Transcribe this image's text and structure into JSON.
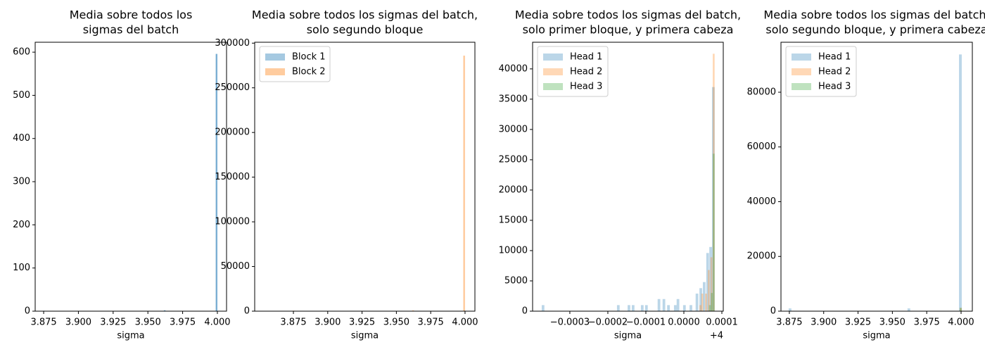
{
  "chart_data": [
    {
      "type": "histogram",
      "title": [
        "Media sobre todos los",
        "sigmas del batch"
      ],
      "x_label": "sigma",
      "xlim": [
        3.8689,
        4.0066
      ],
      "ylim": [
        0,
        623
      ],
      "xticks": [
        3.875,
        {
          "value": 3.9,
          "label": "3.900"
        },
        3.925,
        {
          "value": 3.95,
          "label": "3.950"
        },
        3.975,
        {
          "value": 4,
          "label": "4.000"
        }
      ],
      "yticks": [
        0,
        100,
        200,
        300,
        400,
        500,
        600
      ],
      "alpha": 0.6,
      "series": [
        {
          "color": "#1f77b4",
          "bins": [
            3.8745,
            3.8757,
            3.9615,
            3.9627,
            3.9988,
            4.0
          ],
          "values": [
            1,
            0,
            2,
            0,
            596
          ]
        }
      ]
    },
    {
      "type": "histogram",
      "title": [
        "Media sobre todos los sigmas del batch,",
        "solo segundo bloque"
      ],
      "x_label": "sigma",
      "xlim": [
        3.8468,
        4.0072
      ],
      "ylim": [
        0,
        301000
      ],
      "xticks": [
        3.875,
        {
          "value": 3.9,
          "label": "3.900"
        },
        3.925,
        {
          "value": 3.95,
          "label": "3.950"
        },
        3.975,
        {
          "value": 4,
          "label": "4.000"
        }
      ],
      "yticks": [
        0,
        50000,
        100000,
        150000,
        200000,
        250000,
        300000
      ],
      "alpha": 0.4,
      "legend": "upper left",
      "series": [
        {
          "name": "Block 1",
          "color": "#1f77b4",
          "bins": [
            3.9988,
            4.0
          ],
          "values": [
            596
          ]
        },
        {
          "name": "Block 2",
          "color": "#ff7f0e",
          "bins": [
            3.8745,
            3.8758,
            3.9615,
            3.9628,
            3.9987,
            4.0
          ],
          "values": [
            600,
            0,
            900,
            0,
            286000
          ]
        }
      ]
    },
    {
      "type": "histogram",
      "title": [
        "Media sobre todos los sigmas del batch,",
        "solo primer bloque, y primera cabeza"
      ],
      "x_label": "sigma",
      "xtick_offset": "+4",
      "xlim": [
        3.999602,
        4.0001037
      ],
      "ylim": [
        0,
        44400
      ],
      "xticks": [
        {
          "value": 3.9997,
          "label": "−0.0003"
        },
        {
          "value": 3.9998,
          "label": "−0.0002"
        },
        {
          "value": 3.9999,
          "label": "−0.0001"
        },
        {
          "value": 4,
          "label": "0.0000"
        },
        {
          "value": 4.0001,
          "label": "0.0001"
        }
      ],
      "yticks": [
        0,
        5000,
        10000,
        15000,
        20000,
        25000,
        30000,
        35000,
        40000
      ],
      "alpha": 0.3,
      "legend": "upper left",
      "series": [
        {
          "name": "Head 1",
          "color": "#1f77b4",
          "bins": [
            3.999626,
            3.999633,
            3.999824,
            3.999831,
            3.999852,
            3.999859,
            3.999863,
            3.99987,
            3.999887,
            3.999894,
            3.999898,
            3.999905,
            3.999931,
            3.999938,
            3.999944,
            3.999951,
            3.999956,
            3.999963,
            3.999974,
            3.999981,
            3.999988,
            3.999998,
            4.000005,
            4.000015,
            4.000022,
            4.000031,
            4.000038,
            4.000041,
            4.000048,
            4.00005,
            4.000057,
            4.000059,
            4.000066,
            4.000067,
            4.000074,
            4.000081
          ],
          "values": [
            1000,
            0,
            1000,
            0,
            1000,
            0,
            1000,
            0,
            1000,
            0,
            1000,
            0,
            2000,
            0,
            2000,
            0,
            1000,
            0,
            1000,
            2000,
            0,
            1000,
            0,
            1000,
            0,
            2900,
            0,
            3800,
            0,
            4800,
            0,
            9600,
            0,
            10600,
            37000
          ]
        },
        {
          "name": "Head 2",
          "color": "#ff7f0e",
          "bins": [
            4.000041,
            4.000046,
            4.000051,
            4.000056,
            4.000061,
            4.000063,
            4.000068,
            4.00007,
            4.000075,
            4.000076,
            4.000081
          ],
          "values": [
            1000,
            2900,
            0,
            2900,
            0,
            6800,
            0,
            8900,
            0,
            42500
          ]
        },
        {
          "name": "Head 3",
          "color": "#2ca02c",
          "bins": [
            4.000066,
            4.000071,
            4.000076,
            4.000081
          ],
          "values": [
            1000,
            3000,
            26000
          ]
        }
      ]
    },
    {
      "type": "histogram",
      "title": [
        "Media sobre todos los sigmas del batch,",
        "solo segundo bloque, y primera cabeza"
      ],
      "x_label": "sigma",
      "xlim": [
        3.8689,
        4.0082
      ],
      "ylim": [
        0,
        98260
      ],
      "xticks": [
        3.875,
        {
          "value": 3.9,
          "label": "3.900"
        },
        3.925,
        {
          "value": 3.95,
          "label": "3.950"
        },
        3.975,
        {
          "value": 4,
          "label": "4.000"
        }
      ],
      "yticks": [
        0,
        20000,
        40000,
        60000,
        80000
      ],
      "alpha": 0.3,
      "legend": "upper left",
      "series": [
        {
          "name": "Head 1",
          "color": "#1f77b4",
          "bins": [
            3.8745,
            3.8765,
            3.961,
            3.963,
            3.9985,
            4.0005
          ],
          "values": [
            1000,
            0,
            1000,
            0,
            93800
          ]
        },
        {
          "name": "Head 2",
          "color": "#ff7f0e",
          "bins": [
            3.999,
            4.0005
          ],
          "values": [
            1200
          ]
        },
        {
          "name": "Head 3",
          "color": "#2ca02c",
          "bins": [
            3.999,
            4.0005
          ],
          "values": [
            1200
          ]
        }
      ]
    }
  ]
}
